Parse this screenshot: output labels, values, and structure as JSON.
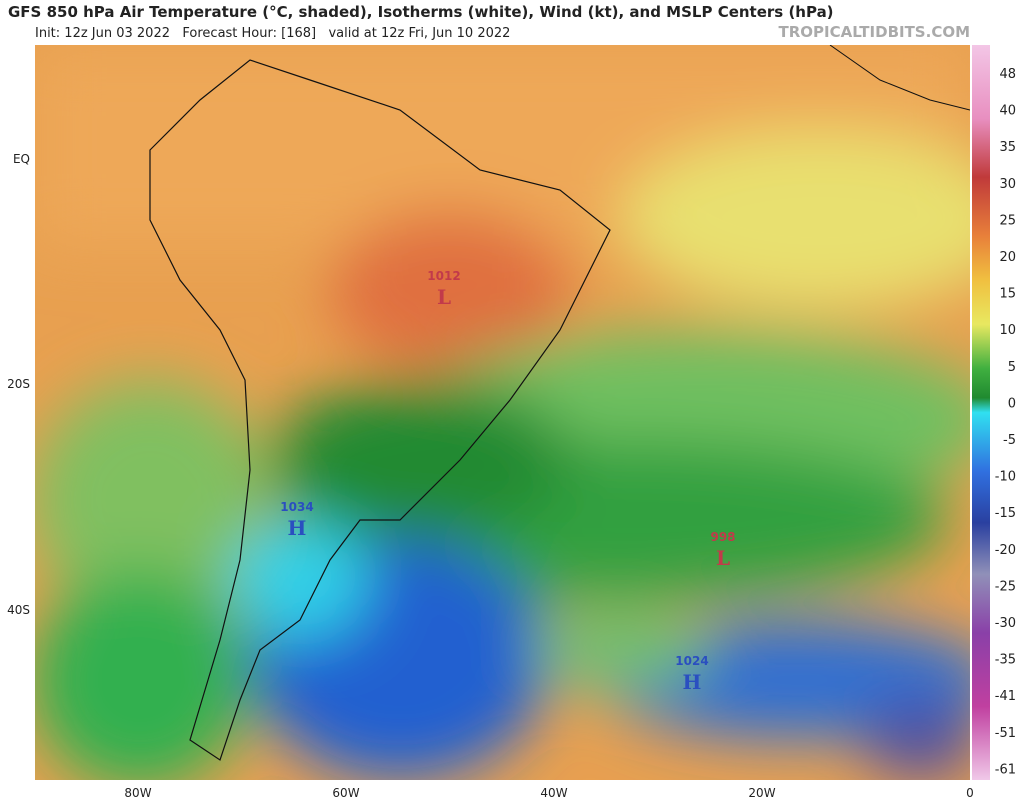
{
  "header": {
    "title": "GFS 850 hPa Air Temperature (°C, shaded), Isotherms (white), Wind (kt), and MSLP Centers (hPa)",
    "subtitle": "Init: 12z Jun 03 2022   Forecast Hour: [168]   valid at 12z Fri, Jun 10 2022",
    "site": "TROPICALTIDBITS.COM"
  },
  "lat_labels": [
    "EQ",
    "20S",
    "40S"
  ],
  "lon_labels": [
    "80W",
    "60W",
    "40W",
    "20W",
    "0"
  ],
  "colorbar": {
    "labels": [
      48,
      40,
      35,
      30,
      25,
      20,
      15,
      10,
      5,
      0,
      -5,
      -10,
      -15,
      -20,
      -25,
      -30,
      -35,
      -41,
      -51,
      -61
    ]
  },
  "centers": [
    {
      "pressure": "1012",
      "letter": "L",
      "color": "#c23a4a"
    },
    {
      "pressure": "998",
      "letter": "L",
      "color": "#c23a4a"
    },
    {
      "pressure": "1034",
      "letter": "H",
      "color": "#2a4fc0"
    },
    {
      "pressure": "1024",
      "letter": "H",
      "color": "#2a4fc0"
    }
  ]
}
